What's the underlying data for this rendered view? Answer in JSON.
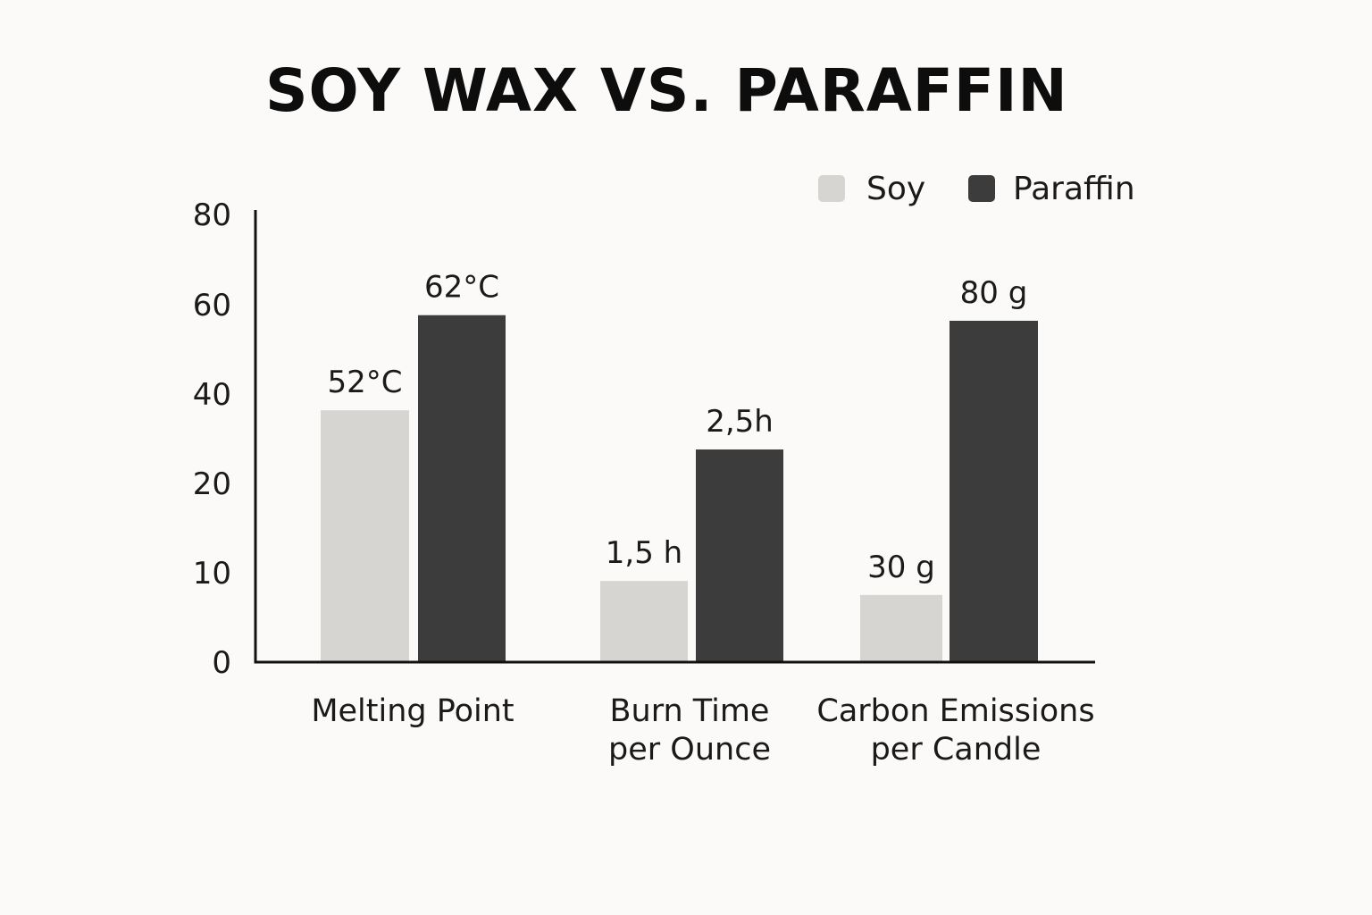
{
  "chart_data": {
    "type": "bar",
    "title": "SOY WAX VS. PARAFFIN",
    "categories": [
      [
        "Melting Point"
      ],
      [
        "Burn Time",
        "per Ounce"
      ],
      [
        "Carbon Emissions",
        "per Candle"
      ]
    ],
    "y_ticks": [
      {
        "value": 0,
        "label": "0"
      },
      {
        "value": 10,
        "label": "10"
      },
      {
        "value": 20,
        "label": "20"
      },
      {
        "value": 40,
        "label": "40"
      },
      {
        "value": 60,
        "label": "60"
      },
      {
        "value": 80,
        "label": "80"
      }
    ],
    "ylim": [
      0,
      80
    ],
    "series": [
      {
        "name": "Soy",
        "color": "#d6d5d1",
        "values": [
          45,
          14.5,
          12
        ],
        "labels": [
          "52°C",
          "1,5 h",
          "30 g"
        ]
      },
      {
        "name": "Paraffin",
        "color": "#3c3c3c",
        "values": [
          62,
          38,
          61
        ],
        "labels": [
          "62°C",
          "2,5h",
          "80 g"
        ]
      }
    ],
    "legend_position": "top-right",
    "grid": false
  }
}
